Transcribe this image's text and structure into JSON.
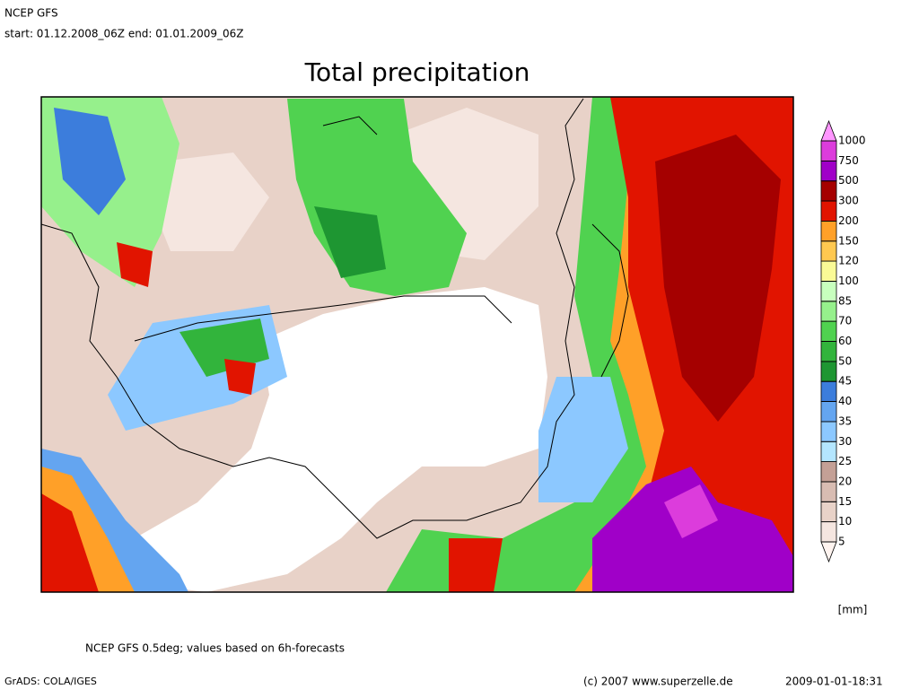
{
  "header": {
    "model": "NCEP GFS",
    "period": "start: 01.12.2008_06Z end: 01.01.2009_06Z"
  },
  "title": "Total precipitation",
  "legend": {
    "levels": [
      5,
      10,
      15,
      20,
      25,
      30,
      35,
      40,
      45,
      50,
      60,
      70,
      85,
      100,
      120,
      150,
      200,
      300,
      500,
      750,
      1000
    ],
    "colors": [
      "#fff4f0",
      "#f5e6e0",
      "#e8d2c8",
      "#d8bcb2",
      "#c4a096",
      "#b4e6ff",
      "#8cc8ff",
      "#64a5f0",
      "#3c7ddc",
      "#1e9632",
      "#32b43c",
      "#50d250",
      "#96f08c",
      "#c8ffbe",
      "#fafa96",
      "#ffc850",
      "#ffa028",
      "#e11400",
      "#a50000",
      "#a000c8",
      "#dc3cdc",
      "#ff96ff"
    ],
    "unit": "[mm]"
  },
  "footer": {
    "note": "NCEP GFS 0.5deg; values based on 6h-forecasts",
    "software": "GrADS: COLA/IGES",
    "copyright": "(c) 2007 www.superzelle.de",
    "timestamp": "2009-01-01-18:31"
  }
}
